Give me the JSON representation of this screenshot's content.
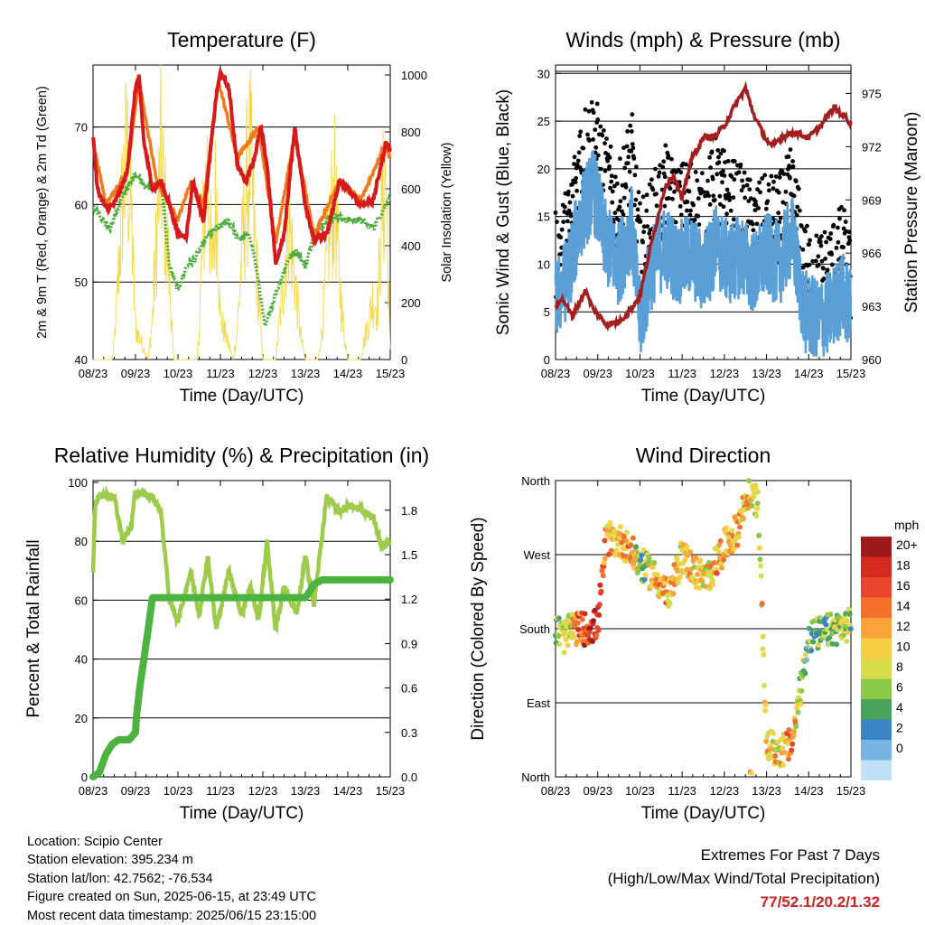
{
  "colors": {
    "temp_red": "#d7191c",
    "temp_orange": "#f07a1c",
    "dewpoint_green": "#4cae3c",
    "solar_yellow": "#f5d94a",
    "wind_blue": "#5a9fd6",
    "gust_black": "#000000",
    "pressure_maroon": "#a31f1f",
    "rh_lightgreen": "#9ccc4a",
    "precip_green": "#4cb340",
    "extremes_value": "#cc2222"
  },
  "temperature_panel": {
    "title": "Temperature (F)",
    "xlabel": "Time (Day/UTC)",
    "ylabel_left": "2m & 9m T (Red, Orange) & 2m Td (Green)",
    "ylabel_right": "Solar Insolation (Yellow)",
    "x_ticks": [
      "08/23",
      "09/23",
      "10/23",
      "11/23",
      "12/23",
      "13/23",
      "14/23",
      "15/23"
    ],
    "y_left_ticks": [
      "40",
      "50",
      "60",
      "70"
    ],
    "y_right_ticks": [
      "0",
      "200",
      "400",
      "600",
      "800",
      "1000"
    ]
  },
  "wind_panel": {
    "title": "Winds (mph) & Pressure (mb)",
    "xlabel": "Time (Day/UTC)",
    "ylabel_left": "Sonic Wind & Gust (Blue, Black)",
    "ylabel_right": "Station Pressure (Maroon)",
    "x_ticks": [
      "08/23",
      "09/23",
      "10/23",
      "11/23",
      "12/23",
      "13/23",
      "14/23",
      "15/23"
    ],
    "y_left_ticks": [
      "0",
      "5",
      "10",
      "15",
      "20",
      "25",
      "30"
    ],
    "y_right_ticks": [
      "960",
      "963",
      "966",
      "969",
      "972",
      "975"
    ]
  },
  "rh_panel": {
    "title": "Relative Humidity (%) & Precipitation (in)",
    "xlabel": "Time (Day/UTC)",
    "ylabel_left": "Percent & Total Rainfall",
    "x_ticks": [
      "08/23",
      "09/23",
      "10/23",
      "11/23",
      "12/23",
      "13/23",
      "14/23",
      "15/23"
    ],
    "y_left_ticks": [
      "0",
      "20",
      "40",
      "60",
      "80",
      "100"
    ],
    "y_right_ticks": [
      "0.0",
      "0.3",
      "0.6",
      "0.9",
      "1.2",
      "1.5",
      "1.8"
    ]
  },
  "direction_panel": {
    "title": "Wind Direction",
    "xlabel": "Time (Day/UTC)",
    "ylabel_left": "Direction (Colored By Speed)",
    "x_ticks": [
      "08/23",
      "09/23",
      "10/23",
      "11/23",
      "12/23",
      "13/23",
      "14/23",
      "15/23"
    ],
    "y_ticks": [
      "North",
      "East",
      "South",
      "West",
      "North"
    ],
    "legend_title": "mph",
    "legend_labels": [
      "20+",
      "18",
      "16",
      "14",
      "12",
      "10",
      "8",
      "6",
      "4",
      "2",
      "0"
    ],
    "legend_colors": [
      "#9e1a1a",
      "#d42a20",
      "#e8452a",
      "#f36f2c",
      "#f9a23a",
      "#f6cf44",
      "#d8dc4c",
      "#8cc84a",
      "#4aa35a",
      "#3a86c4",
      "#78b4e2",
      "#bfe2f6"
    ]
  },
  "chart_data": [
    {
      "type": "line",
      "title": "Temperature (F)",
      "xlabel": "Time (Day/UTC)",
      "ylabel": "2m & 9m T (Red, Orange) & 2m Td (Green)",
      "y2label": "Solar Insolation (Yellow)",
      "x_range_days": [
        8,
        15
      ],
      "ylim": [
        40,
        78
      ],
      "y2lim": [
        0,
        1000
      ],
      "series": [
        {
          "x": [
            8,
            8.1,
            8.3,
            8.5,
            8.8,
            9.0,
            9.08,
            9.2,
            9.4,
            9.6,
            9.8,
            10.0,
            10.2,
            10.35,
            10.6,
            10.9,
            11.0,
            11.2,
            11.4,
            11.6,
            11.8,
            11.95,
            12.1,
            12.3,
            12.5,
            12.75,
            13.0,
            13.2,
            13.5,
            13.8,
            14.0,
            14.3,
            14.6,
            14.9,
            15.0
          ],
          "values": [
            69,
            62,
            59.5,
            60,
            64,
            75,
            76.5,
            68,
            62,
            63,
            60,
            56,
            56,
            63,
            58,
            74,
            77,
            75,
            65,
            63,
            66,
            70,
            65,
            52.5,
            56,
            70,
            60,
            55.5,
            56,
            63,
            62,
            60,
            60.5,
            68,
            67
          ]
        },
        {
          "x": [
            8,
            8.3,
            8.8,
            9.08,
            9.5,
            10.0,
            10.3,
            10.6,
            10.95,
            11.4,
            11.9,
            12.3,
            12.75,
            13.2,
            13.8,
            14.3,
            14.9,
            15.0
          ],
          "values": [
            68,
            60,
            64,
            76,
            63,
            58,
            63,
            60,
            76,
            66,
            70,
            55,
            69,
            56,
            63,
            60.5,
            68,
            66
          ]
        },
        {
          "x": [
            8,
            8.2,
            8.4,
            8.7,
            8.9,
            9.0,
            9.3,
            9.6,
            9.8,
            10.0,
            10.2,
            10.4,
            10.7,
            10.95,
            11.2,
            11.4,
            11.7,
            11.9,
            12.05,
            12.2,
            12.4,
            12.6,
            12.8,
            13.0,
            13.2,
            13.4,
            13.7,
            14.0,
            14.3,
            14.6,
            14.9,
            15.0
          ],
          "values": [
            60,
            58,
            57,
            61,
            63,
            64,
            62,
            63,
            52,
            49,
            52,
            53,
            56,
            57,
            58,
            55.5,
            56,
            50,
            44,
            47,
            50,
            53,
            54,
            52,
            56,
            57.5,
            58.5,
            58,
            58,
            57,
            60,
            61
          ]
        },
        {
          "x": [
            8.45,
            8.5,
            8.6,
            8.7,
            8.8,
            8.9,
            9.0,
            9.3,
            9.4,
            9.5,
            9.6,
            9.8,
            9.9,
            10.45,
            10.5,
            10.6,
            10.7,
            10.8,
            10.9,
            11.0,
            11.3,
            11.4,
            11.5,
            11.6,
            11.7,
            11.8,
            11.9,
            12.0,
            12.3,
            12.4,
            12.5,
            12.6,
            12.7,
            12.8,
            12.9,
            13.0,
            13.3,
            13.4,
            13.5,
            13.6,
            13.7,
            13.8,
            13.9,
            14.0,
            14.3,
            14.4,
            14.5,
            14.6,
            14.7,
            14.8,
            14.9,
            15.0
          ],
          "values": [
            0,
            80,
            420,
            800,
            1000,
            700,
            150,
            0,
            200,
            600,
            980,
            400,
            0,
            0,
            150,
            650,
            950,
            400,
            850,
            200,
            0,
            150,
            500,
            800,
            990,
            600,
            300,
            0,
            0,
            200,
            400,
            700,
            500,
            300,
            100,
            0,
            0,
            150,
            450,
            700,
            800,
            400,
            150,
            0,
            0,
            100,
            200,
            300,
            250,
            700,
            900,
            0
          ]
        }
      ]
    },
    {
      "type": "line",
      "title": "Winds (mph) & Pressure (mb)",
      "xlabel": "Time (Day/UTC)",
      "ylabel": "Sonic Wind & Gust (Blue, Black)",
      "y2label": "Station Pressure (Maroon)",
      "x_range_days": [
        8,
        15
      ],
      "ylim": [
        0,
        31
      ],
      "y2lim": [
        960,
        976.5
      ],
      "series": [
        {
          "x": [
            8,
            8.3,
            8.6,
            8.9,
            9.2,
            9.5,
            9.8,
            10.0,
            10.3,
            10.6,
            10.9,
            11.2,
            11.5,
            11.8,
            12.1,
            12.4,
            12.7,
            13.0,
            13.3,
            13.6,
            13.9,
            14.2,
            14.5,
            14.8,
            15.0
          ],
          "values": [
            6,
            9,
            15,
            18,
            12,
            10,
            14,
            4,
            10,
            12,
            10,
            11,
            9,
            12,
            10,
            11,
            9,
            11,
            10,
            13,
            5,
            4,
            5,
            7,
            5
          ]
        },
        {
          "x": [
            8,
            8.3,
            8.6,
            8.9,
            9.2,
            9.5,
            9.8,
            10.0,
            10.3,
            10.6,
            10.9,
            11.2,
            11.5,
            11.8,
            12.1,
            12.4,
            12.7,
            13.0,
            13.3,
            13.6,
            13.9,
            14.2,
            14.5,
            14.8,
            15.0
          ],
          "values": [
            11,
            14,
            22,
            24,
            19,
            16,
            22,
            12,
            15,
            18,
            16,
            17,
            15,
            19,
            17,
            16,
            14,
            15,
            15,
            18,
            10,
            9,
            10,
            12,
            9
          ]
        },
        {
          "x": [
            8,
            8.1,
            8.2,
            8.4,
            8.7,
            8.9,
            9.2,
            9.5,
            9.8,
            10.0,
            10.2,
            10.4,
            10.6,
            10.8,
            11.0,
            11.2,
            11.5,
            11.8,
            12.0,
            12.3,
            12.5,
            12.7,
            12.9,
            13.1,
            13.4,
            13.7,
            14.0,
            14.3,
            14.6,
            14.9,
            15.0
          ],
          "values": [
            963,
            963.4,
            963.3,
            962.4,
            963.9,
            962.8,
            962.0,
            962.1,
            962.9,
            963.6,
            965.8,
            967.8,
            969.8,
            970.4,
            969.0,
            971.2,
            972.5,
            972.6,
            973.2,
            974.5,
            975.3,
            973.8,
            972.8,
            972.0,
            972.6,
            972.8,
            972.5,
            973.2,
            974.2,
            973.6,
            973.3
          ]
        }
      ]
    },
    {
      "type": "line",
      "title": "Relative Humidity (%) & Precipitation (in)",
      "xlabel": "Time (Day/UTC)",
      "ylabel": "Percent & Total Rainfall",
      "x_range_days": [
        8,
        15
      ],
      "ylim": [
        0,
        100
      ],
      "y2lim": [
        0,
        2.0
      ],
      "series": [
        {
          "x": [
            8,
            8.05,
            8.2,
            8.5,
            8.7,
            8.9,
            9.0,
            9.2,
            9.4,
            9.6,
            9.8,
            10.0,
            10.3,
            10.5,
            10.7,
            10.9,
            11.2,
            11.5,
            11.7,
            11.9,
            12.1,
            12.3,
            12.5,
            12.8,
            13.0,
            13.2,
            13.5,
            13.8,
            14.0,
            14.3,
            14.6,
            14.8,
            15.0
          ],
          "values": [
            70,
            93,
            96,
            95,
            80,
            85,
            97,
            96,
            95,
            90,
            60,
            53,
            70,
            55,
            75,
            50,
            70,
            55,
            65,
            53,
            80,
            50,
            65,
            55,
            75,
            58,
            95,
            90,
            92,
            91,
            88,
            78,
            80
          ]
        },
        {
          "x": [
            8,
            8.15,
            8.3,
            8.45,
            8.6,
            8.85,
            9.0,
            9.02,
            9.1,
            9.2,
            9.3,
            9.4,
            9.6,
            10.0,
            11.0,
            12.0,
            13.0,
            13.1,
            13.2,
            13.4,
            14.0,
            15.0
          ],
          "values": [
            0,
            0.03,
            0.15,
            0.22,
            0.25,
            0.25,
            0.3,
            0.4,
            0.6,
            0.8,
            1.0,
            1.21,
            1.21,
            1.21,
            1.21,
            1.21,
            1.21,
            1.25,
            1.3,
            1.33,
            1.33,
            1.33
          ]
        }
      ]
    },
    {
      "type": "scatter",
      "title": "Wind Direction",
      "xlabel": "Time (Day/UTC)",
      "ylabel": "Direction (Colored By Speed)",
      "x_range_days": [
        8,
        15
      ],
      "ylim_deg": [
        0,
        360
      ],
      "series": [
        {
          "x": [
            8.0,
            8.2,
            8.4,
            8.7,
            9.0,
            9.2,
            9.6,
            10.0,
            10.4,
            10.7,
            11.0,
            11.3,
            11.6,
            12.0,
            12.3,
            12.6,
            12.8,
            13.0,
            13.3,
            13.6,
            14.0,
            14.3,
            14.6,
            15.0
          ],
          "values": [
            180,
            170,
            180,
            180,
            185,
            290,
            285,
            260,
            240,
            220,
            270,
            250,
            240,
            280,
            300,
            350,
            330,
            40,
            30,
            40,
            170,
            175,
            180,
            185
          ]
        }
      ]
    }
  ],
  "footer": {
    "location": "Location: Scipio Center",
    "elevation": "Station elevation: 395.234 m",
    "latlon": "Station lat/lon: 42.7562; -76.534",
    "created": "Figure created on Sun, 2025-06-15, at 23:49 UTC",
    "recent": "Most recent data timestamp: 2025/06/15 23:15:00"
  },
  "extremes": {
    "line1": "Extremes For Past 7 Days",
    "line2": "(High/Low/Max Wind/Total Precipitation)",
    "values": "77/52.1/20.2/1.32"
  }
}
